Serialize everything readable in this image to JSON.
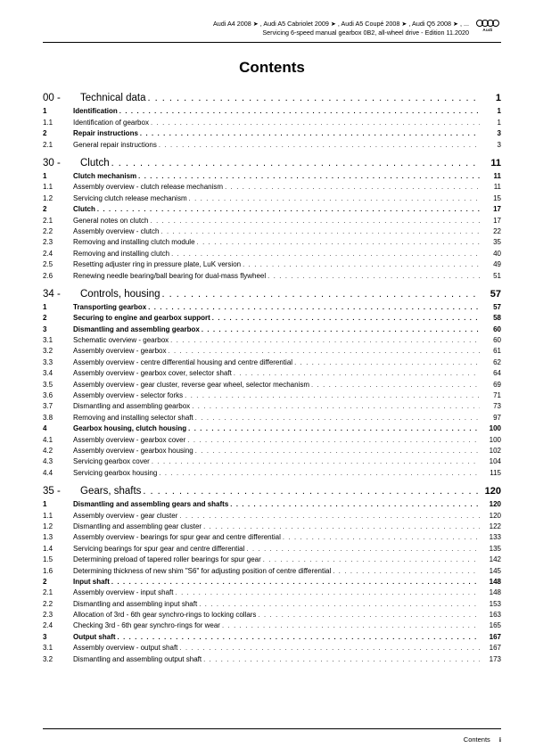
{
  "header": {
    "line1": "Audi A4 2008 ➤ , Audi A5 Cabriolet 2009 ➤ , Audi A5 Coupé 2008 ➤ , Audi Q5 2008 ➤ , ...",
    "line2": "Servicing 6-speed manual gearbox 0B2, all-wheel drive - Edition 11.2020",
    "logoText": "Audi"
  },
  "title": "Contents",
  "sections": [
    {
      "num": "00 - ",
      "title": "Technical data",
      "page": "1",
      "entries": [
        {
          "num": "1",
          "title": "Identification",
          "page": "1",
          "bold": true
        },
        {
          "num": "1.1",
          "title": "Identification of gearbox",
          "page": "1",
          "bold": false
        },
        {
          "num": "2",
          "title": "Repair instructions",
          "page": "3",
          "bold": true
        },
        {
          "num": "2.1",
          "title": "General repair instructions",
          "page": "3",
          "bold": false
        }
      ]
    },
    {
      "num": "30 - ",
      "title": "Clutch",
      "page": "11",
      "entries": [
        {
          "num": "1",
          "title": "Clutch mechanism",
          "page": "11",
          "bold": true
        },
        {
          "num": "1.1",
          "title": "Assembly overview - clutch release mechanism",
          "page": "11",
          "bold": false
        },
        {
          "num": "1.2",
          "title": "Servicing clutch release mechanism",
          "page": "15",
          "bold": false
        },
        {
          "num": "2",
          "title": "Clutch",
          "page": "17",
          "bold": true
        },
        {
          "num": "2.1",
          "title": "General notes on clutch",
          "page": "17",
          "bold": false
        },
        {
          "num": "2.2",
          "title": "Assembly overview - clutch",
          "page": "22",
          "bold": false
        },
        {
          "num": "2.3",
          "title": "Removing and installing clutch module",
          "page": "35",
          "bold": false
        },
        {
          "num": "2.4",
          "title": "Removing and installing clutch",
          "page": "40",
          "bold": false
        },
        {
          "num": "2.5",
          "title": "Resetting adjuster ring in pressure plate, LuK version",
          "page": "49",
          "bold": false
        },
        {
          "num": "2.6",
          "title": "Renewing needle bearing/ball bearing for dual-mass flywheel",
          "page": "51",
          "bold": false
        }
      ]
    },
    {
      "num": "34 - ",
      "title": "Controls, housing",
      "page": "57",
      "entries": [
        {
          "num": "1",
          "title": "Transporting gearbox",
          "page": "57",
          "bold": true
        },
        {
          "num": "2",
          "title": "Securing to engine and gearbox support",
          "page": "58",
          "bold": true
        },
        {
          "num": "3",
          "title": "Dismantling and assembling gearbox",
          "page": "60",
          "bold": true
        },
        {
          "num": "3.1",
          "title": "Schematic overview - gearbox",
          "page": "60",
          "bold": false
        },
        {
          "num": "3.2",
          "title": "Assembly overview - gearbox",
          "page": "61",
          "bold": false
        },
        {
          "num": "3.3",
          "title": "Assembly overview - centre differential housing and centre differential",
          "page": "62",
          "bold": false
        },
        {
          "num": "3.4",
          "title": "Assembly overview - gearbox cover, selector shaft",
          "page": "64",
          "bold": false
        },
        {
          "num": "3.5",
          "title": "Assembly overview - gear cluster, reverse gear wheel, selector mechanism",
          "page": "69",
          "bold": false
        },
        {
          "num": "3.6",
          "title": "Assembly overview - selector forks",
          "page": "71",
          "bold": false
        },
        {
          "num": "3.7",
          "title": "Dismantling and assembling gearbox",
          "page": "73",
          "bold": false
        },
        {
          "num": "3.8",
          "title": "Removing and installing selector shaft",
          "page": "97",
          "bold": false
        },
        {
          "num": "4",
          "title": "Gearbox housing, clutch housing",
          "page": "100",
          "bold": true
        },
        {
          "num": "4.1",
          "title": "Assembly overview - gearbox cover",
          "page": "100",
          "bold": false
        },
        {
          "num": "4.2",
          "title": "Assembly overview - gearbox housing",
          "page": "102",
          "bold": false
        },
        {
          "num": "4.3",
          "title": "Servicing gearbox cover",
          "page": "104",
          "bold": false
        },
        {
          "num": "4.4",
          "title": "Servicing gearbox housing",
          "page": "115",
          "bold": false
        }
      ]
    },
    {
      "num": "35 - ",
      "title": "Gears, shafts",
      "page": "120",
      "entries": [
        {
          "num": "1",
          "title": "Dismantling and assembling gears and shafts",
          "page": "120",
          "bold": true
        },
        {
          "num": "1.1",
          "title": "Assembly overview - gear cluster",
          "page": "120",
          "bold": false
        },
        {
          "num": "1.2",
          "title": "Dismantling and assembling gear cluster",
          "page": "122",
          "bold": false
        },
        {
          "num": "1.3",
          "title": "Assembly overview - bearings for spur gear and centre differential",
          "page": "133",
          "bold": false
        },
        {
          "num": "1.4",
          "title": "Servicing bearings for spur gear and centre differential",
          "page": "135",
          "bold": false
        },
        {
          "num": "1.5",
          "title": "Determining preload of tapered roller bearings for spur gear",
          "page": "142",
          "bold": false
        },
        {
          "num": "1.6",
          "title": "Determining thickness of new shim \"S6\" for adjusting position of centre differential",
          "page": "145",
          "bold": false
        },
        {
          "num": "2",
          "title": "Input shaft",
          "page": "148",
          "bold": true
        },
        {
          "num": "2.1",
          "title": "Assembly overview - input shaft",
          "page": "148",
          "bold": false
        },
        {
          "num": "2.2",
          "title": "Dismantling and assembling input shaft",
          "page": "153",
          "bold": false
        },
        {
          "num": "2.3",
          "title": "Allocation of 3rd - 6th gear synchro-rings to locking collars",
          "page": "163",
          "bold": false
        },
        {
          "num": "2.4",
          "title": "Checking 3rd - 6th gear synchro-rings for wear",
          "page": "165",
          "bold": false
        },
        {
          "num": "3",
          "title": "Output shaft",
          "page": "167",
          "bold": true
        },
        {
          "num": "3.1",
          "title": "Assembly overview - output shaft",
          "page": "167",
          "bold": false
        },
        {
          "num": "3.2",
          "title": "Dismantling and assembling output shaft",
          "page": "173",
          "bold": false
        }
      ]
    }
  ],
  "footer": {
    "label": "Contents",
    "page": "i"
  },
  "dots": ". . . . . . . . . . . . . . . . . . . . . . . . . . . . . . . . . . . . . . . . . . . . . . . . . . . . . . . . . . . . . . . . . . . . . . . . . . . . . . . . . . . . . . . . . . . . . . . . . . . . . . . . . . . . . . . . . . . . . . . . . . . . . . . . ."
}
